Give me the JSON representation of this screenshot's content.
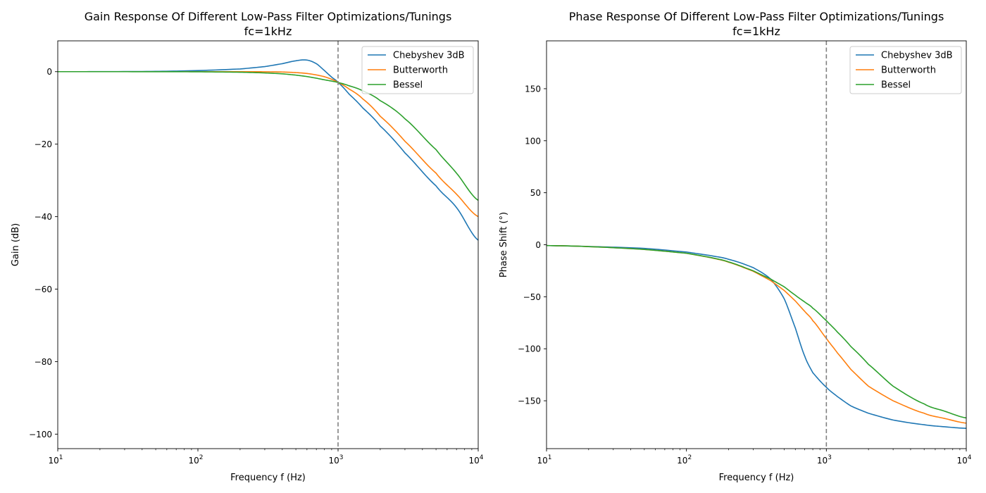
{
  "chart_data": [
    {
      "type": "line",
      "title": "Gain Response Of Different Low-Pass Filter Optimizations/Tunings",
      "subtitle": "fc=1kHz",
      "xlabel": "Frequency f (Hz)",
      "ylabel": "Gain (dB)",
      "xscale": "log",
      "xlim": [
        10,
        10000
      ],
      "ylim": [
        -104,
        8.5
      ],
      "xticks": [
        {
          "value": 10,
          "base": "10",
          "exp": "1"
        },
        {
          "value": 100,
          "base": "10",
          "exp": "2"
        },
        {
          "value": 1000,
          "base": "10",
          "exp": "3"
        },
        {
          "value": 10000,
          "base": "10",
          "exp": "4"
        }
      ],
      "yticks": [
        {
          "value": 0,
          "label": "0"
        },
        {
          "value": -20,
          "label": "−20"
        },
        {
          "value": -40,
          "label": "−40"
        },
        {
          "value": -60,
          "label": "−60"
        },
        {
          "value": -80,
          "label": "−80"
        },
        {
          "value": -100,
          "label": "−100"
        }
      ],
      "vline": {
        "x": 1000,
        "style": "dashed",
        "color": "#808080"
      },
      "legend_position": "top-right",
      "grid": false,
      "x": [
        10,
        20,
        50,
        100,
        200,
        300,
        400,
        500,
        600,
        700,
        800,
        900,
        1000,
        1200,
        1500,
        2000,
        3000,
        5000,
        7000,
        10000
      ],
      "series": [
        {
          "name": "Chebyshev 3dB",
          "color": "#1f77b4",
          "values": [
            0.0,
            0.01,
            0.08,
            0.3,
            0.75,
            1.4,
            2.2,
            3.0,
            3.2,
            2.2,
            0.3,
            -1.5,
            -3.0,
            -6.2,
            -10.0,
            -15.0,
            -22.4,
            -31.5,
            -37.5,
            -46.5
          ]
        },
        {
          "name": "Butterworth",
          "color": "#ff7f0e",
          "values": [
            0.0,
            0.0,
            0.0,
            0.0,
            0.0,
            -0.03,
            -0.1,
            -0.25,
            -0.5,
            -0.9,
            -1.4,
            -2.1,
            -3.0,
            -4.8,
            -7.5,
            -12.3,
            -19.2,
            -28.0,
            -33.8,
            -40.0
          ]
        },
        {
          "name": "Bessel",
          "color": "#2ca02c",
          "values": [
            0.0,
            0.0,
            -0.01,
            -0.04,
            -0.15,
            -0.35,
            -0.6,
            -0.95,
            -1.35,
            -1.8,
            -2.25,
            -2.6,
            -3.0,
            -3.9,
            -5.3,
            -8.0,
            -13.0,
            -21.5,
            -28.0,
            -35.5
          ]
        }
      ]
    },
    {
      "type": "line",
      "title": "Phase Response Of Different Low-Pass Filter Optimizations/Tunings",
      "subtitle": "fc=1kHz",
      "xlabel": "Frequency f (Hz)",
      "ylabel": "Phase Shift (°)",
      "xscale": "log",
      "xlim": [
        10,
        10000
      ],
      "ylim": [
        -196,
        196
      ],
      "xticks": [
        {
          "value": 10,
          "base": "10",
          "exp": "1"
        },
        {
          "value": 100,
          "base": "10",
          "exp": "2"
        },
        {
          "value": 1000,
          "base": "10",
          "exp": "3"
        },
        {
          "value": 10000,
          "base": "10",
          "exp": "4"
        }
      ],
      "yticks": [
        {
          "value": 150,
          "label": "150"
        },
        {
          "value": 100,
          "label": "100"
        },
        {
          "value": 50,
          "label": "50"
        },
        {
          "value": 0,
          "label": "0"
        },
        {
          "value": -50,
          "label": "−50"
        },
        {
          "value": -100,
          "label": "−100"
        },
        {
          "value": -150,
          "label": "−150"
        }
      ],
      "vline": {
        "x": 1000,
        "style": "dashed",
        "color": "#808080"
      },
      "legend_position": "top-right",
      "grid": false,
      "x": [
        10,
        20,
        50,
        100,
        150,
        200,
        300,
        400,
        500,
        600,
        700,
        800,
        1000,
        1200,
        1500,
        2000,
        3000,
        5000,
        7000,
        10000
      ],
      "series": [
        {
          "name": "Chebyshev 3dB",
          "color": "#1f77b4",
          "values": [
            -0.8,
            -1.7,
            -3.5,
            -7.0,
            -10.5,
            -14.0,
            -22.0,
            -33.0,
            -52.0,
            -80.0,
            -107.0,
            -123.0,
            -137.0,
            -146.0,
            -155.0,
            -162.0,
            -168.5,
            -173.0,
            -175.0,
            -176.5
          ]
        },
        {
          "name": "Butterworth",
          "color": "#ff7f0e",
          "values": [
            -0.8,
            -1.8,
            -4.5,
            -8.2,
            -12.5,
            -16.8,
            -25.5,
            -34.5,
            -44.0,
            -54.0,
            -64.0,
            -73.0,
            -90.0,
            -104.0,
            -120.0,
            -136.0,
            -150.0,
            -162.0,
            -167.0,
            -171.5
          ]
        },
        {
          "name": "Bessel",
          "color": "#2ca02c",
          "values": [
            -0.8,
            -1.8,
            -4.5,
            -8.2,
            -12.3,
            -16.5,
            -25.0,
            -33.0,
            -40.5,
            -48.5,
            -55.0,
            -61.0,
            -73.0,
            -84.0,
            -98.0,
            -115.0,
            -136.0,
            -153.0,
            -160.0,
            -166.5
          ]
        }
      ]
    }
  ]
}
